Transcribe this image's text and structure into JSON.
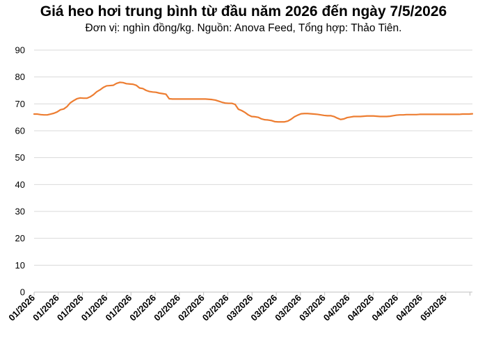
{
  "chart_data": {
    "type": "line",
    "title": "Giá heo hơi trung bình từ đầu năm 2026 đến ngày 7/5/2026",
    "subtitle": "Đơn vị: nghìn đồng/kg. Nguồn: Anova Feed, Tổng hợp: Thảo Tiên.",
    "xlabel": "",
    "ylabel": "",
    "ylim": [
      0,
      90
    ],
    "yticks": [
      0,
      10,
      20,
      30,
      40,
      50,
      60,
      70,
      80,
      90
    ],
    "grid": true,
    "x_tick_labels": [
      "01/2026",
      "01/2026",
      "01/2026",
      "01/2026",
      "01/2026",
      "02/2026",
      "02/2026",
      "02/2026",
      "02/2026",
      "03/2026",
      "03/2026",
      "03/2026",
      "03/2026",
      "04/2026",
      "04/2026",
      "04/2026",
      "04/2026",
      "05/2026"
    ],
    "line_color": "#ed7d31",
    "series": [
      {
        "values": [
          66.2,
          66.2,
          66.0,
          65.9,
          65.9,
          66.2,
          66.5,
          67.0,
          67.8,
          68.1,
          69.0,
          70.4,
          71.2,
          71.9,
          72.2,
          72.1,
          72.1,
          72.6,
          73.4,
          74.5,
          75.2,
          76.1,
          76.7,
          76.8,
          76.9,
          77.6,
          78.0,
          77.9,
          77.5,
          77.4,
          77.3,
          76.9,
          75.9,
          75.7,
          75.0,
          74.6,
          74.4,
          74.3,
          74.0,
          73.8,
          73.6,
          71.9,
          71.8,
          71.8,
          71.8,
          71.8,
          71.8,
          71.8,
          71.8,
          71.8,
          71.8,
          71.8,
          71.8,
          71.7,
          71.6,
          71.4,
          71.0,
          70.6,
          70.3,
          70.2,
          70.2,
          69.8,
          68.0,
          67.5,
          66.8,
          65.9,
          65.3,
          65.2,
          65.0,
          64.4,
          64.1,
          64.0,
          63.8,
          63.4,
          63.3,
          63.3,
          63.3,
          63.6,
          64.3,
          65.2,
          65.8,
          66.3,
          66.4,
          66.4,
          66.3,
          66.2,
          66.1,
          65.9,
          65.7,
          65.6,
          65.6,
          65.3,
          64.7,
          64.2,
          64.4,
          64.9,
          65.1,
          65.3,
          65.3,
          65.3,
          65.4,
          65.5,
          65.5,
          65.5,
          65.4,
          65.3,
          65.3,
          65.3,
          65.4,
          65.6,
          65.8,
          65.9,
          65.9,
          66.0,
          66.0,
          66.0,
          66.0,
          66.1,
          66.1,
          66.1,
          66.1,
          66.1,
          66.1,
          66.1,
          66.1,
          66.1,
          66.1,
          66.1,
          66.1,
          66.1,
          66.2,
          66.2,
          66.2,
          66.3
        ]
      }
    ]
  }
}
